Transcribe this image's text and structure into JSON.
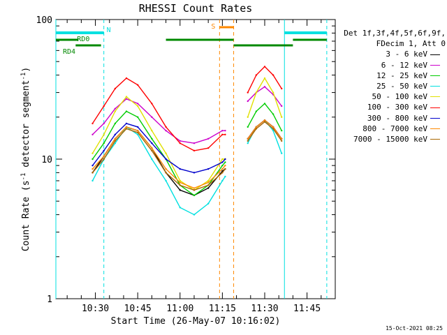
{
  "chart_data": {
    "type": "line",
    "title": "RHESSI Count Rates",
    "xlabel": "Start Time (26-May-07 10:16:02)",
    "ylabel_text": "Count Rate (s",
    "ylabel_sup": "-1",
    "ylabel_text2": " detector segment",
    "ylabel_sup2": "-1",
    "ylabel_close": ")",
    "yscale": "log",
    "ylim": [
      1,
      100
    ],
    "xlim": [
      "10:16",
      "11:55"
    ],
    "yticks": [
      "1",
      "10",
      "100"
    ],
    "xticks": [
      "10:30",
      "10:45",
      "11:00",
      "11:15",
      "11:30",
      "11:45"
    ],
    "grid": false,
    "legend_position": "right",
    "legend_header": [
      "Det 1f,3f,4f,5f,6f,9f,",
      "FDecim 1, Att 0"
    ],
    "series": [
      {
        "name": "3 - 6 keV",
        "color": "#000000",
        "x": [
          "10:29",
          "10:33",
          "10:37",
          "10:41",
          "10:45",
          "10:50",
          "10:55",
          "11:00",
          "11:05",
          "11:10",
          "11:15",
          "11:16",
          "11:24",
          "11:27",
          "11:30",
          "11:33",
          "11:36"
        ],
        "y": [
          8,
          10.5,
          14,
          17,
          16,
          12,
          8,
          6,
          5.5,
          6.2,
          8.2,
          8.5,
          14,
          17,
          19,
          17,
          14
        ]
      },
      {
        "name": "6 - 12 keV",
        "color": "#cc00cc",
        "x": [
          "10:29",
          "10:33",
          "10:37",
          "10:41",
          "10:45",
          "10:50",
          "10:55",
          "11:00",
          "11:05",
          "11:10",
          "11:15",
          "11:16",
          "11:24",
          "11:27",
          "11:30",
          "11:33",
          "11:36"
        ],
        "y": [
          15,
          18,
          23,
          27,
          25,
          20,
          16,
          13.5,
          13,
          14,
          16,
          16,
          26,
          30,
          33,
          29,
          24
        ]
      },
      {
        "name": "12 - 25 keV",
        "color": "#00cc00",
        "x": [
          "10:29",
          "10:33",
          "10:37",
          "10:41",
          "10:45",
          "10:50",
          "10:55",
          "11:00",
          "11:05",
          "11:10",
          "11:15",
          "11:16",
          "11:24",
          "11:27",
          "11:30",
          "11:33",
          "11:36"
        ],
        "y": [
          10,
          13,
          18,
          22,
          20,
          14,
          10,
          6.5,
          5.5,
          6.5,
          9,
          9.5,
          17,
          22,
          25,
          21,
          16
        ]
      },
      {
        "name": "25 - 50 keV",
        "color": "#00e0e0",
        "x": [
          "10:29",
          "10:33",
          "10:37",
          "10:41",
          "10:45",
          "10:50",
          "10:55",
          "11:00",
          "11:05",
          "11:10",
          "11:15",
          "11:16",
          "11:24",
          "11:27",
          "11:30",
          "11:33",
          "11:36"
        ],
        "y": [
          7,
          10,
          13,
          17,
          15,
          10,
          7,
          4.5,
          4,
          4.8,
          7,
          7.5,
          13,
          17,
          19,
          16,
          11
        ]
      },
      {
        "name": "50 - 100 keV",
        "color": "#e0e000",
        "x": [
          "10:29",
          "10:33",
          "10:37",
          "10:41",
          "10:45",
          "10:50",
          "10:55",
          "11:00",
          "11:05",
          "11:10",
          "11:15",
          "11:16",
          "11:24",
          "11:27",
          "11:30",
          "11:33",
          "11:36"
        ],
        "y": [
          11,
          15,
          22,
          28,
          24,
          16,
          11,
          7,
          6,
          7,
          10,
          10,
          20,
          30,
          38,
          30,
          20
        ]
      },
      {
        "name": "100 - 300 keV",
        "color": "#ff0000",
        "x": [
          "10:29",
          "10:33",
          "10:37",
          "10:41",
          "10:45",
          "10:50",
          "10:55",
          "11:00",
          "11:05",
          "11:10",
          "11:15",
          "11:16",
          "11:24",
          "11:27",
          "11:30",
          "11:33",
          "11:36"
        ],
        "y": [
          18,
          24,
          32,
          38,
          34,
          25,
          17,
          13,
          11.5,
          12,
          15,
          15,
          30,
          40,
          46,
          40,
          32
        ]
      },
      {
        "name": "300 - 800 keV",
        "color": "#0000cc",
        "x": [
          "10:29",
          "10:33",
          "10:37",
          "10:41",
          "10:45",
          "10:50",
          "10:55",
          "11:00",
          "11:05",
          "11:10",
          "11:15",
          "11:16",
          "11:24",
          "11:27",
          "11:30",
          "11:33",
          "11:36"
        ],
        "y": [
          9,
          11.5,
          15,
          18,
          17,
          13,
          10,
          8.5,
          8,
          8.5,
          9.5,
          10,
          14,
          17,
          19,
          17,
          14
        ]
      },
      {
        "name": "800 - 7000 keV",
        "color": "#ff8800",
        "x": [
          "10:29",
          "10:33",
          "10:37",
          "10:41",
          "10:45",
          "10:50",
          "10:55",
          "11:00",
          "11:05",
          "11:10",
          "11:15",
          "11:16",
          "11:24",
          "11:27",
          "11:30",
          "11:33",
          "11:36"
        ],
        "y": [
          8.5,
          10.5,
          14,
          17,
          16,
          12,
          8.5,
          6.8,
          6.2,
          6.8,
          8.5,
          9,
          14,
          17,
          19,
          17,
          14
        ]
      },
      {
        "name": "7000 - 15000 keV",
        "color": "#aa6600",
        "x": [
          "10:29",
          "10:33",
          "10:37",
          "10:41",
          "10:45",
          "10:50",
          "10:55",
          "11:00",
          "11:05",
          "11:10",
          "11:15",
          "11:16",
          "11:24",
          "11:27",
          "11:30",
          "11:33",
          "11:36"
        ],
        "y": [
          8,
          10,
          13.5,
          16.5,
          15.5,
          11.5,
          8,
          6.5,
          6,
          6.5,
          8,
          8.5,
          13.5,
          16.5,
          18.5,
          16.5,
          13.5
        ]
      }
    ],
    "flags": [
      {
        "label": "N",
        "color": "#00e0e0",
        "segments": [
          [
            "10:16",
            "10:33"
          ],
          [
            "11:37",
            "11:52"
          ]
        ],
        "vlines": [
          "10:16",
          "10:33",
          "11:37",
          "11:52"
        ]
      },
      {
        "label": "RD0",
        "color": "#008800",
        "segments": [
          [
            "10:16",
            "10:24"
          ],
          [
            "10:23",
            "10:32"
          ],
          [
            "10:55",
            "11:19"
          ],
          [
            "11:19",
            "11:40"
          ],
          [
            "11:40",
            "11:52"
          ]
        ]
      },
      {
        "label": "RD4",
        "color": "#008800",
        "segments": []
      },
      {
        "label": "S",
        "color": "#ff8800",
        "segments": [
          [
            "11:14",
            "11:19"
          ]
        ],
        "vlines": [
          "11:14",
          "11:19"
        ]
      }
    ]
  },
  "timestamp": "15-Oct-2021 08:25"
}
